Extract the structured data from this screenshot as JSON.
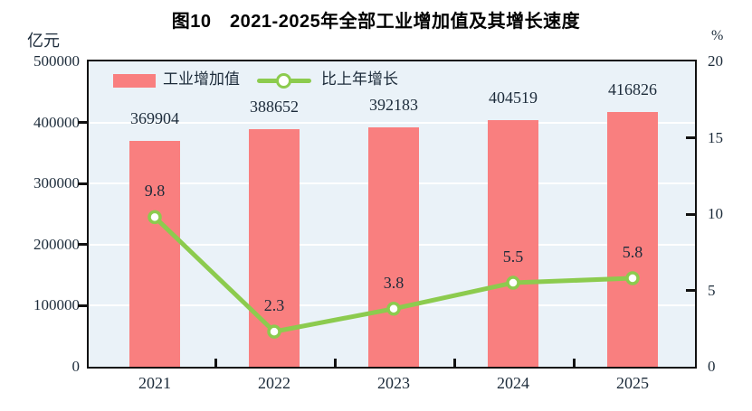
{
  "title": "图10　2021-2025年全部工业增加值及其增长速度",
  "axes": {
    "left": {
      "unit": "亿元",
      "ticks": [
        0,
        100000,
        200000,
        300000,
        400000,
        500000
      ],
      "max": 500000
    },
    "right": {
      "unit": "%",
      "ticks": [
        0,
        5,
        10,
        15,
        20
      ],
      "max": 20
    }
  },
  "legend": {
    "bar_label": "工业增加值",
    "line_label": "比上年增长"
  },
  "colors": {
    "bar": "#F97F7F",
    "line": "#8CCB4E",
    "marker_fill": "#FFFFFF",
    "plot_bg": "#EAF2F8",
    "grid": "#FFFFFF",
    "axis": "#111111",
    "text": "#1C2B3A"
  },
  "chart_data": {
    "type": "bar+line",
    "categories": [
      "2021",
      "2022",
      "2023",
      "2024",
      "2025"
    ],
    "series": [
      {
        "name": "工业增加值",
        "type": "bar",
        "axis": "left",
        "unit": "亿元",
        "values": [
          369904,
          388652,
          392183,
          404519,
          416826
        ]
      },
      {
        "name": "比上年增长",
        "type": "line",
        "axis": "right",
        "unit": "%",
        "values": [
          9.8,
          2.3,
          3.8,
          5.5,
          5.8
        ]
      }
    ],
    "title": "图10 2021-2025年全部工业增加值及其增长速度",
    "xlabel": "",
    "left_ylabel": "亿元",
    "right_ylabel": "%",
    "left_ylim": [
      0,
      500000
    ],
    "right_ylim": [
      0,
      20
    ],
    "grid": true,
    "legend_position": "top-left inside plot"
  }
}
